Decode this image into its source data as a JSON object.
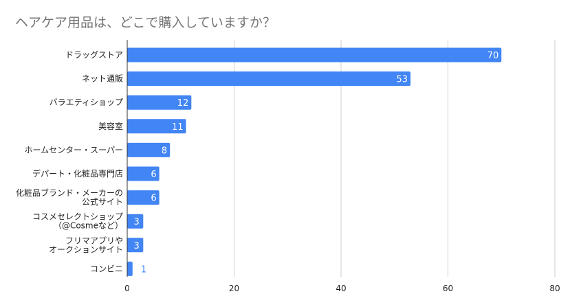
{
  "chart_data": {
    "type": "bar",
    "orientation": "horizontal",
    "title": "ヘアケア用品は、どこで購入していますか？",
    "categories": [
      "ドラッグストア",
      "ネット通販",
      "バラエティショップ",
      "美容室",
      "ホームセンター・スーパー",
      "デパート・化粧品専門店",
      "化粧品ブランド・メーカーの\n公式サイト",
      "コスメセレクトショップ\n（@Cosmeなど）",
      "フリマアプリや\nオークションサイト",
      "コンビニ"
    ],
    "values": [
      70,
      53,
      12,
      11,
      8,
      6,
      6,
      3,
      3,
      1
    ],
    "xlim": [
      0,
      80
    ],
    "xticks": [
      0,
      20,
      40,
      60,
      80
    ],
    "grid": true,
    "legend": "none",
    "bar_color": "#4285f4",
    "label_inside_color": "#ffffff",
    "label_outside_color": "#4285f4",
    "gridline_color": "#cccccc",
    "axis_color": "#333333"
  }
}
